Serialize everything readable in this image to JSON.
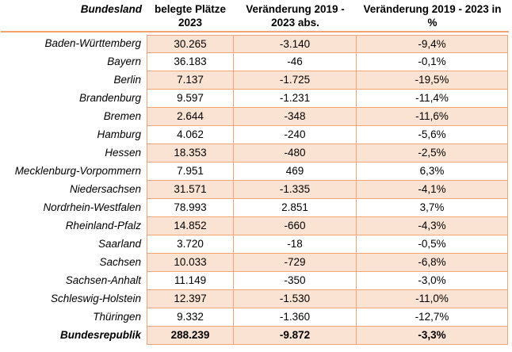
{
  "colors": {
    "cell_fill": "#fbe3d4",
    "grid_border": "#f2a478",
    "text": "#000000",
    "page_background": "#ffffff"
  },
  "table": {
    "header": {
      "columns": [
        {
          "id": "bundesland",
          "label": "Bundesland",
          "lines": [
            "Bundesland"
          ]
        },
        {
          "id": "plaetze",
          "label": "belegte Plätze 2023",
          "lines": [
            "belegte Plätze",
            "2023"
          ]
        },
        {
          "id": "abs",
          "label": "Veränderung 2019 - 2023 abs.",
          "lines": [
            "Veränderung 2019 -",
            "2023 abs."
          ]
        },
        {
          "id": "pct",
          "label": "Veränderung 2019 - 2023 in %",
          "lines": [
            "Veränderung 2019 - 2023 in",
            "%"
          ]
        }
      ]
    },
    "rows": [
      {
        "name": "Baden-Württemberg",
        "plaetze": "30.265",
        "abs": "-3.140",
        "pct": "-9,4%",
        "emphasis": false
      },
      {
        "name": "Bayern",
        "plaetze": "36.183",
        "abs": "-46",
        "pct": "-0,1%",
        "emphasis": false
      },
      {
        "name": "Berlin",
        "plaetze": "7.137",
        "abs": "-1.725",
        "pct": "-19,5%",
        "emphasis": false
      },
      {
        "name": "Brandenburg",
        "plaetze": "9.597",
        "abs": "-1.231",
        "pct": "-11,4%",
        "emphasis": false
      },
      {
        "name": "Bremen",
        "plaetze": "2.644",
        "abs": "-348",
        "pct": "-11,6%",
        "emphasis": false
      },
      {
        "name": "Hamburg",
        "plaetze": "4.062",
        "abs": "-240",
        "pct": "-5,6%",
        "emphasis": false
      },
      {
        "name": "Hessen",
        "plaetze": "18.353",
        "abs": "-480",
        "pct": "-2,5%",
        "emphasis": false
      },
      {
        "name": "Mecklenburg-Vorpommern",
        "plaetze": "7.951",
        "abs": "469",
        "pct": "6,3%",
        "emphasis": false
      },
      {
        "name": "Niedersachsen",
        "plaetze": "31.571",
        "abs": "-1.335",
        "pct": "-4,1%",
        "emphasis": false
      },
      {
        "name": "Nordrhein-Westfalen",
        "plaetze": "78.993",
        "abs": "2.851",
        "pct": "3,7%",
        "emphasis": false
      },
      {
        "name": "Rheinland-Pfalz",
        "plaetze": "14.852",
        "abs": "-660",
        "pct": "-4,3%",
        "emphasis": false
      },
      {
        "name": "Saarland",
        "plaetze": "3.720",
        "abs": "-18",
        "pct": "-0,5%",
        "emphasis": false
      },
      {
        "name": "Sachsen",
        "plaetze": "10.033",
        "abs": "-729",
        "pct": "-6,8%",
        "emphasis": false
      },
      {
        "name": "Sachsen-Anhalt",
        "plaetze": "11.149",
        "abs": "-350",
        "pct": "-3,0%",
        "emphasis": false
      },
      {
        "name": "Schleswig-Holstein",
        "plaetze": "12.397",
        "abs": "-1.530",
        "pct": "-11,0%",
        "emphasis": false
      },
      {
        "name": "Thüringen",
        "plaetze": "9.332",
        "abs": "-1.360",
        "pct": "-12,7%",
        "emphasis": false
      },
      {
        "name": "Bundesrepublik",
        "plaetze": "288.239",
        "abs": "-9.872",
        "pct": "-3,3%",
        "emphasis": true
      }
    ]
  }
}
